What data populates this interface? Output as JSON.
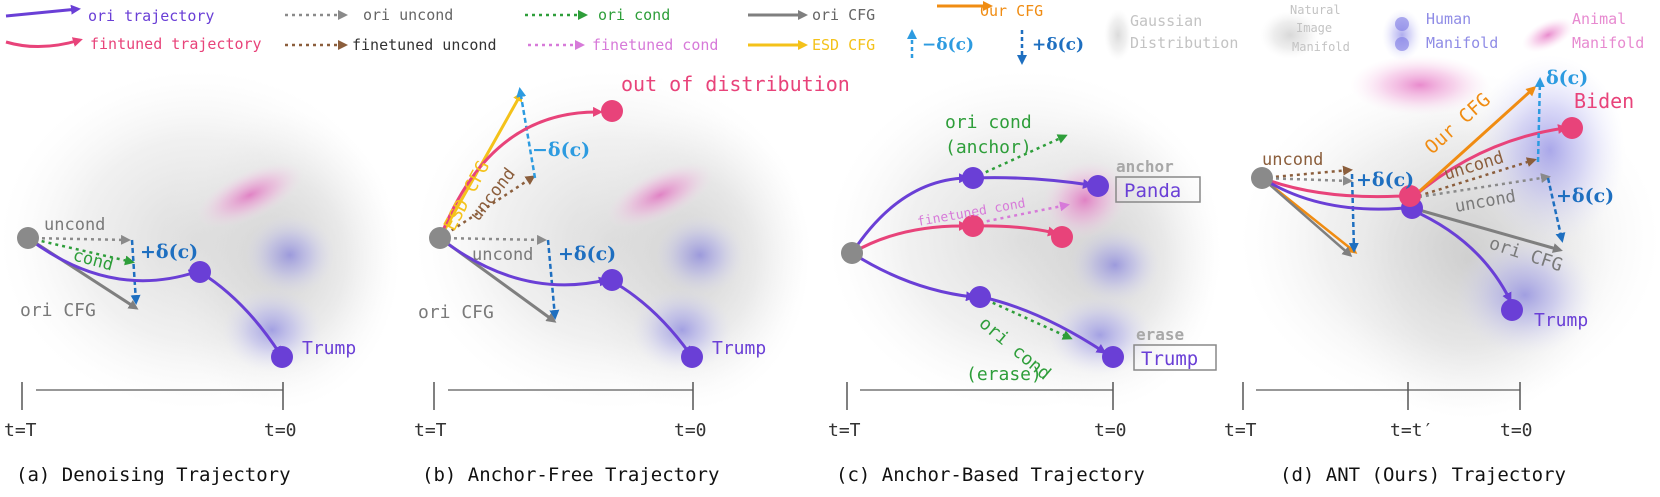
{
  "legend": {
    "ori_trajectory": "ori trajectory",
    "ori_uncond": "ori uncond",
    "ori_cond": "ori cond",
    "ori_cfg": "ori CFG",
    "our_cfg": "Our CFG",
    "fintuned_trajectory": "fintuned trajectory",
    "finetuned_uncond": "finetuned uncond",
    "finetuned_cond": "finetuned cond",
    "esd_cfg": "ESD CFG",
    "minus_delta": "−δ(c)",
    "plus_delta": "+δ(c)",
    "gaussian_line1": "Gaussian",
    "gaussian_line2": "Distribution",
    "natural_line1": "Natural",
    "natural_line2": "Image",
    "natural_line3": "Manifold",
    "human_line1": "Human",
    "human_line2": "Manifold",
    "animal_line1": "Animal",
    "animal_line2": "Manifold"
  },
  "panel_a": {
    "uncond": "uncond",
    "cond": "cond",
    "delta": "+δ(c)",
    "ori_cfg": "ori CFG",
    "trump": "Trump",
    "t_start": "t=T",
    "t_end": "t=0",
    "caption": "(a) Denoising Trajectory"
  },
  "panel_b": {
    "esd_cfg": "ESD CFG",
    "uncond_top": "uncond",
    "out_of_distribution": "out of distribution",
    "minus_delta": "−δ(c)",
    "uncond": "uncond",
    "plus_delta": "+δ(c)",
    "ori_cfg": "ori CFG",
    "trump": "Trump",
    "t_start": "t=T",
    "t_end": "t=0",
    "caption": "(b) Anchor-Free Trajectory"
  },
  "panel_c": {
    "ori_cond_anchor_1": "ori cond",
    "ori_cond_anchor_2": "(anchor)",
    "anchor": "anchor",
    "panda": "Panda",
    "finetuned_cond": "finetuned cond",
    "ori_cond_erase_1": "ori cond",
    "ori_cond_erase_2": "(erase)",
    "erase": "erase",
    "trump": "Trump",
    "t_start": "t=T",
    "t_end": "t=0",
    "caption": "(c) Anchor-Based Trajectory"
  },
  "panel_d": {
    "delta_top": "δ(c)",
    "biden": "Biden",
    "our_cfg": "Our CFG",
    "uncond_left": "uncond",
    "plus_delta_left": "+δ(c)",
    "uncond_mid": "uncond",
    "uncond_low": "uncond",
    "plus_delta_right": "+δ(c)",
    "ori_cfg": "ori CFG",
    "trump": "Trump",
    "t_start": "t=T",
    "t_mid": "t=t′",
    "t_end": "t=0",
    "caption": "(d) ANT (Ours) Trajectory"
  },
  "colors": {
    "ori_trajectory": "#6a3fd6",
    "fintuned_trajectory": "#e8437a",
    "ori_uncond": "#8a8a8a",
    "finetuned_uncond": "#8b5e3c",
    "ori_cond": "#2e9e3a",
    "finetuned_cond": "#d77ad9",
    "ori_cfg": "#7f7f7f",
    "esd_cfg": "#f4c21a",
    "our_cfg": "#f08c12",
    "minus_delta": "#2d9be0",
    "plus_delta": "#1e6fc0"
  }
}
